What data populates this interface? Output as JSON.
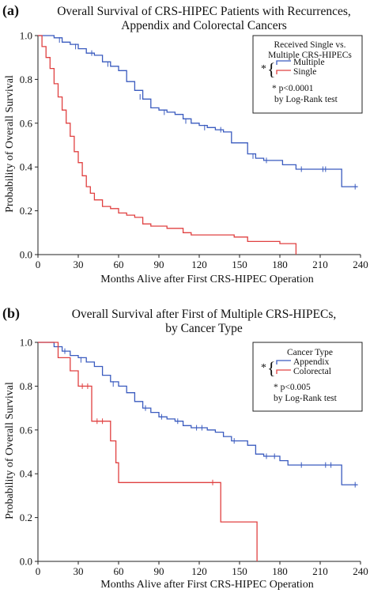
{
  "panels": [
    {
      "letter": "(a)",
      "title_line1": "Overall Survival of CRS-HIPEC Patients with Recurrences,",
      "title_line2": "Appendix and Colorectal Cancers",
      "xlabel": "Months Alive after First CRS-HIPEC Operation",
      "ylabel": "Probability of Overall Survival",
      "legend": {
        "title_line1": "Received Single vs.",
        "title_line2": "Multiple CRS-HIPECs",
        "star": "*",
        "note_line1": "* p<0.0001",
        "note_line2": "by Log-Rank test"
      }
    },
    {
      "letter": "(b)",
      "title_line1": "Overall Survival after First of Multiple CRS-HIPECs,",
      "title_line2": "by Cancer Type",
      "xlabel": "Months Alive after First CRS-HIPEC Operation",
      "ylabel": "Probability of Overall Survival",
      "legend": {
        "title_line1": "Cancer Type",
        "title_line2": "",
        "star": "*",
        "note_line1": "* p<0.005",
        "note_line2": "by Log-Rank test"
      }
    }
  ],
  "chart_data": [
    {
      "type": "line",
      "step": true,
      "title": "Overall Survival of CRS-HIPEC Patients with Recurrences, Appendix and Colorectal Cancers",
      "xlabel": "Months Alive after First CRS-HIPEC Operation",
      "ylabel": "Probability of Overall Survival",
      "xlim": [
        0,
        240
      ],
      "ylim": [
        0,
        1.0
      ],
      "xticks": [
        0,
        30,
        60,
        90,
        120,
        150,
        180,
        210,
        240
      ],
      "yticks": [
        "0.0",
        "0.2",
        "0.4",
        "0.6",
        "0.8",
        "1.0"
      ],
      "legend_position": "top-right",
      "series": [
        {
          "name": "Multiple",
          "color": "#3a5bbf",
          "points": [
            [
              0,
              1.0
            ],
            [
              12,
              0.99
            ],
            [
              18,
              0.97
            ],
            [
              24,
              0.96
            ],
            [
              30,
              0.94
            ],
            [
              36,
              0.92
            ],
            [
              42,
              0.91
            ],
            [
              48,
              0.88
            ],
            [
              54,
              0.86
            ],
            [
              60,
              0.84
            ],
            [
              66,
              0.79
            ],
            [
              72,
              0.75
            ],
            [
              78,
              0.71
            ],
            [
              84,
              0.67
            ],
            [
              90,
              0.66
            ],
            [
              96,
              0.65
            ],
            [
              102,
              0.64
            ],
            [
              108,
              0.62
            ],
            [
              114,
              0.6
            ],
            [
              120,
              0.59
            ],
            [
              126,
              0.58
            ],
            [
              132,
              0.57
            ],
            [
              138,
              0.56
            ],
            [
              144,
              0.51
            ],
            [
              150,
              0.51
            ],
            [
              156,
              0.46
            ],
            [
              162,
              0.44
            ],
            [
              168,
              0.43
            ],
            [
              176,
              0.43
            ],
            [
              182,
              0.41
            ],
            [
              192,
              0.39
            ],
            [
              226,
              0.31
            ],
            [
              238,
              0.31
            ]
          ],
          "censored": [
            [
              16,
              0.98
            ],
            [
              28,
              0.95
            ],
            [
              40,
              0.92
            ],
            [
              52,
              0.87
            ],
            [
              76,
              0.72
            ],
            [
              94,
              0.65
            ],
            [
              110,
              0.61
            ],
            [
              124,
              0.58
            ],
            [
              136,
              0.57
            ],
            [
              160,
              0.45
            ],
            [
              170,
              0.43
            ],
            [
              196,
              0.39
            ],
            [
              212,
              0.39
            ],
            [
              214,
              0.39
            ],
            [
              236,
              0.31
            ]
          ]
        },
        {
          "name": "Single",
          "color": "#e04040",
          "points": [
            [
              0,
              1.0
            ],
            [
              3,
              0.95
            ],
            [
              6,
              0.9
            ],
            [
              9,
              0.85
            ],
            [
              12,
              0.78
            ],
            [
              15,
              0.72
            ],
            [
              18,
              0.66
            ],
            [
              21,
              0.6
            ],
            [
              24,
              0.54
            ],
            [
              27,
              0.47
            ],
            [
              30,
              0.42
            ],
            [
              33,
              0.36
            ],
            [
              36,
              0.31
            ],
            [
              39,
              0.28
            ],
            [
              42,
              0.25
            ],
            [
              48,
              0.22
            ],
            [
              54,
              0.21
            ],
            [
              60,
              0.19
            ],
            [
              66,
              0.18
            ],
            [
              72,
              0.17
            ],
            [
              78,
              0.14
            ],
            [
              84,
              0.13
            ],
            [
              96,
              0.12
            ],
            [
              108,
              0.1
            ],
            [
              114,
              0.09
            ],
            [
              140,
              0.09
            ],
            [
              146,
              0.08
            ],
            [
              156,
              0.06
            ],
            [
              168,
              0.06
            ],
            [
              180,
              0.05
            ],
            [
              192,
              0.0
            ]
          ]
        }
      ]
    },
    {
      "type": "line",
      "step": true,
      "title": "Overall Survival after First of Multiple CRS-HIPECs, by Cancer Type",
      "xlabel": "Months Alive after First CRS-HIPEC Operation",
      "ylabel": "Probability of Overall Survival",
      "xlim": [
        0,
        240
      ],
      "ylim": [
        0,
        1.0
      ],
      "xticks": [
        0,
        30,
        60,
        90,
        120,
        150,
        180,
        210,
        240
      ],
      "yticks": [
        "0.0",
        "0.2",
        "0.4",
        "0.6",
        "0.8",
        "1.0"
      ],
      "legend_position": "top-right",
      "series": [
        {
          "name": "Appendix",
          "color": "#3a5bbf",
          "points": [
            [
              0,
              1.0
            ],
            [
              12,
              0.98
            ],
            [
              18,
              0.96
            ],
            [
              24,
              0.94
            ],
            [
              30,
              0.93
            ],
            [
              36,
              0.91
            ],
            [
              42,
              0.89
            ],
            [
              48,
              0.85
            ],
            [
              54,
              0.82
            ],
            [
              60,
              0.8
            ],
            [
              66,
              0.77
            ],
            [
              72,
              0.73
            ],
            [
              78,
              0.7
            ],
            [
              84,
              0.68
            ],
            [
              90,
              0.66
            ],
            [
              96,
              0.65
            ],
            [
              102,
              0.64
            ],
            [
              108,
              0.62
            ],
            [
              114,
              0.61
            ],
            [
              126,
              0.6
            ],
            [
              132,
              0.59
            ],
            [
              138,
              0.57
            ],
            [
              144,
              0.55
            ],
            [
              150,
              0.55
            ],
            [
              156,
              0.53
            ],
            [
              162,
              0.49
            ],
            [
              168,
              0.48
            ],
            [
              180,
              0.46
            ],
            [
              186,
              0.44
            ],
            [
              226,
              0.35
            ],
            [
              238,
              0.35
            ]
          ],
          "censored": [
            [
              20,
              0.96
            ],
            [
              32,
              0.92
            ],
            [
              56,
              0.81
            ],
            [
              80,
              0.7
            ],
            [
              92,
              0.66
            ],
            [
              104,
              0.64
            ],
            [
              118,
              0.61
            ],
            [
              122,
              0.61
            ],
            [
              146,
              0.55
            ],
            [
              170,
              0.48
            ],
            [
              176,
              0.48
            ],
            [
              196,
              0.44
            ],
            [
              214,
              0.44
            ],
            [
              218,
              0.44
            ],
            [
              236,
              0.35
            ]
          ]
        },
        {
          "name": "Colorectal",
          "color": "#e04040",
          "points": [
            [
              0,
              1.0
            ],
            [
              15,
              0.93
            ],
            [
              24,
              0.87
            ],
            [
              30,
              0.8
            ],
            [
              40,
              0.64
            ],
            [
              54,
              0.55
            ],
            [
              58,
              0.45
            ],
            [
              60,
              0.36
            ],
            [
              136,
              0.18
            ],
            [
              163,
              0.0
            ]
          ],
          "censored": [
            [
              33,
              0.8
            ],
            [
              37,
              0.8
            ],
            [
              44,
              0.64
            ],
            [
              48,
              0.64
            ],
            [
              130,
              0.36
            ]
          ]
        }
      ]
    }
  ]
}
